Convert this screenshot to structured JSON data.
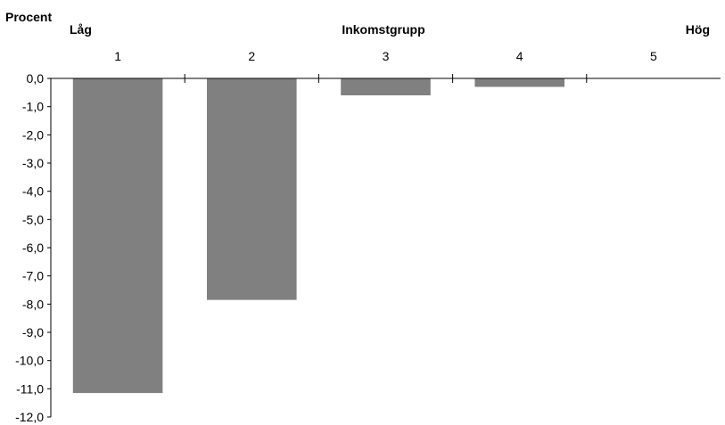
{
  "chart_data": {
    "type": "bar",
    "ylabel": "Procent",
    "xlabel": "Inkomstgrupp",
    "x_end_labels": {
      "left": "Låg",
      "right": "Hög"
    },
    "categories": [
      "1",
      "2",
      "3",
      "4",
      "5"
    ],
    "values": [
      -11.15,
      -7.85,
      -0.6,
      -0.3,
      0.0
    ],
    "ylim": [
      -12,
      0
    ],
    "yticks": [
      "0,0",
      "-1,0",
      "-2,0",
      "-3,0",
      "-4,0",
      "-5,0",
      "-6,0",
      "-7,0",
      "-8,0",
      "-9,0",
      "-10,0",
      "-11,0",
      "-12,0"
    ],
    "x_axis_position": "top",
    "bar_color": "#808080",
    "grid": false
  }
}
